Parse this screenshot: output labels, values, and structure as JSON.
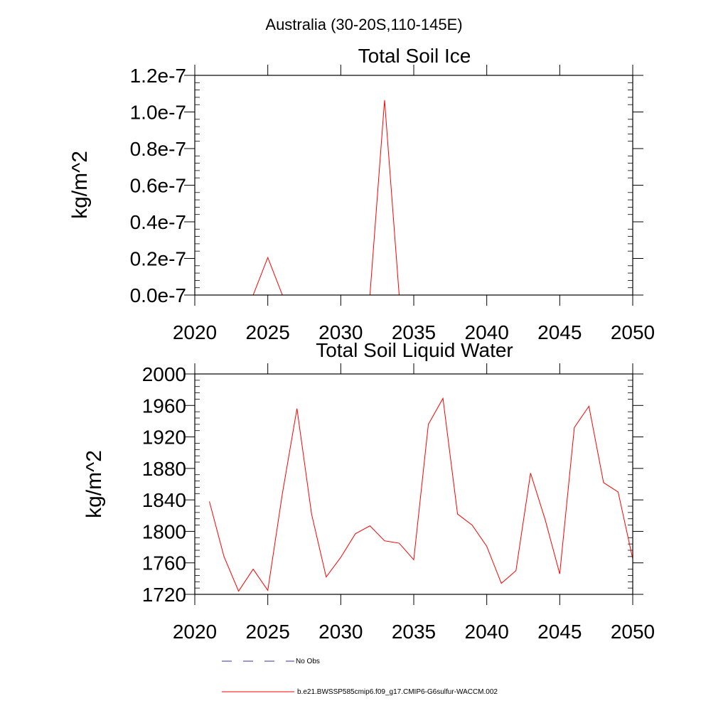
{
  "suptitle": "Australia (30-20S,110-145E)",
  "legend": {
    "items": [
      {
        "label": "No Obs",
        "color": "#333399",
        "dash": "14 16"
      },
      {
        "label": "b.e21.BWSSP585cmip6.f09_g17.CMIP6-G6sulfur-WACCM.002",
        "color": "#ff0000",
        "dash": ""
      }
    ]
  },
  "chart_data": [
    {
      "type": "line",
      "title": "Total Soil Ice",
      "xlabel": "",
      "ylabel": "kg/m^2",
      "xlim": [
        2020,
        2050
      ],
      "ylim": [
        0,
        1.2e-07
      ],
      "xticks": [
        2020,
        2025,
        2030,
        2035,
        2040,
        2045,
        2050
      ],
      "xtick_labels": [
        "2020",
        "2025",
        "2030",
        "2035",
        "2040",
        "2045",
        "2050"
      ],
      "yticks": [
        0,
        2e-08,
        4e-08,
        6e-08,
        8e-08,
        1e-07,
        1.2e-07
      ],
      "ytick_labels": [
        "0.0e-7",
        "0.2e-7",
        "0.4e-7",
        "0.6e-7",
        "0.8e-7",
        "1.0e-7",
        "1.2e-7"
      ],
      "grid": false,
      "series": [
        {
          "color": "#ff0000",
          "x": [
            2021,
            2022,
            2023,
            2024,
            2025,
            2026,
            2027,
            2028,
            2029,
            2030,
            2031,
            2032,
            2033,
            2034,
            2035,
            2036,
            2037,
            2038,
            2039,
            2040,
            2041,
            2042,
            2043,
            2044,
            2045,
            2046,
            2047,
            2048,
            2049,
            2050
          ],
          "values": [
            0,
            0,
            0,
            0,
            2.05e-08,
            0,
            0,
            0,
            0,
            0,
            0,
            0,
            1.065e-07,
            0,
            0,
            0,
            0,
            0,
            0,
            0,
            0,
            0,
            0,
            0,
            0,
            0,
            0,
            0,
            0,
            0
          ]
        }
      ]
    },
    {
      "type": "line",
      "title": "Total Soil Liquid Water",
      "xlabel": "",
      "ylabel": "kg/m^2",
      "xlim": [
        2020,
        2050
      ],
      "ylim": [
        1720,
        2000
      ],
      "xticks": [
        2020,
        2025,
        2030,
        2035,
        2040,
        2045,
        2050
      ],
      "xtick_labels": [
        "2020",
        "2025",
        "2030",
        "2035",
        "2040",
        "2045",
        "2050"
      ],
      "yticks": [
        1720,
        1760,
        1800,
        1840,
        1880,
        1920,
        1960,
        2000
      ],
      "ytick_labels": [
        "1720",
        "1760",
        "1800",
        "1840",
        "1880",
        "1920",
        "1960",
        "2000"
      ],
      "grid": false,
      "series": [
        {
          "color": "#ff0000",
          "x": [
            2021,
            2022,
            2023,
            2024,
            2025,
            2026,
            2027,
            2028,
            2029,
            2030,
            2031,
            2032,
            2033,
            2034,
            2035,
            2036,
            2037,
            2038,
            2039,
            2040,
            2041,
            2042,
            2043,
            2044,
            2045,
            2046,
            2047,
            2048,
            2049,
            2050
          ],
          "values": [
            1838,
            1768,
            1724,
            1752,
            1725,
            1848,
            1956,
            1822,
            1742,
            1767,
            1797,
            1807,
            1788,
            1785,
            1764,
            1936,
            1969,
            1822,
            1808,
            1781,
            1734,
            1750,
            1874,
            1815,
            1746,
            1932,
            1959,
            1862,
            1850,
            1765
          ]
        }
      ]
    }
  ]
}
